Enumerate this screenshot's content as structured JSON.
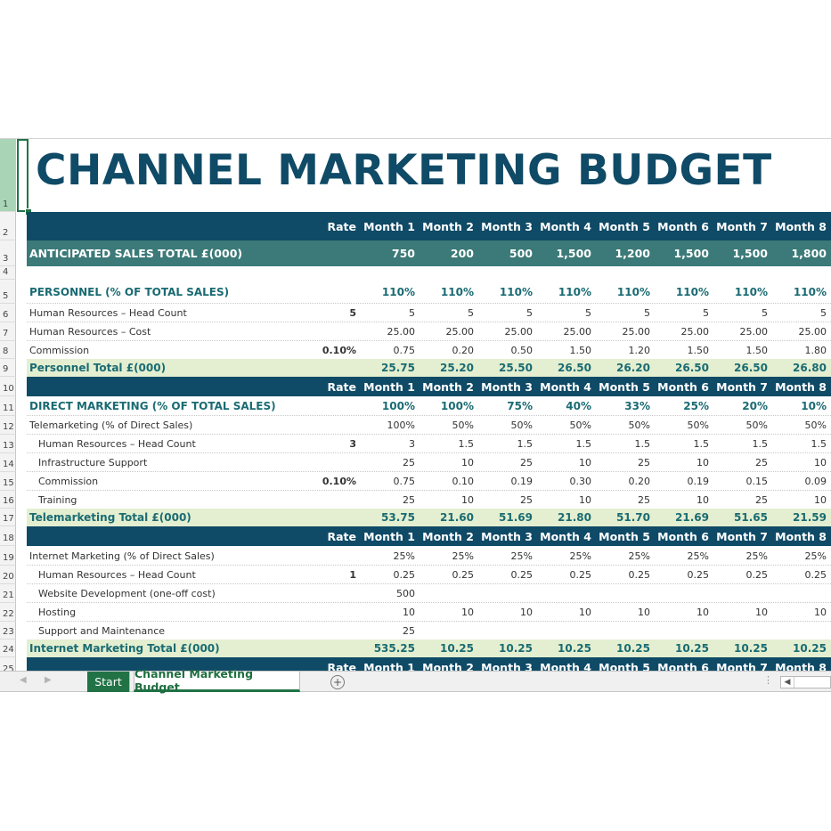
{
  "title": "CHANNEL MARKETING BUDGET",
  "header": {
    "rate": "Rate",
    "months": [
      "Month 1",
      "Month 2",
      "Month 3",
      "Month 4",
      "Month 5",
      "Month 6",
      "Month 7",
      "Month 8"
    ]
  },
  "rows": {
    "r1": "1",
    "r2": "2",
    "r3": "3",
    "r4": "4",
    "r5": "5",
    "r6": "6",
    "r7": "7",
    "r8": "8",
    "r9": "9",
    "r10": "10",
    "r11": "11",
    "r12": "12",
    "r13": "13",
    "r14": "14",
    "r15": "15",
    "r16": "16",
    "r17": "17",
    "r18": "18",
    "r19": "19",
    "r20": "20",
    "r21": "21",
    "r22": "22",
    "r23": "23",
    "r24": "24",
    "r25": "25"
  },
  "anticipated": {
    "label": "ANTICIPATED SALES TOTAL £(000)",
    "values": [
      "750",
      "200",
      "500",
      "1,500",
      "1,200",
      "1,500",
      "1,500",
      "1,800"
    ]
  },
  "personnel": {
    "label": "PERSONNEL (% OF TOTAL SALES)",
    "pct": [
      "110%",
      "110%",
      "110%",
      "110%",
      "110%",
      "110%",
      "110%",
      "110%"
    ],
    "hr_count": {
      "label": "Human Resources – Head Count",
      "rate": "5",
      "values": [
        "5",
        "5",
        "5",
        "5",
        "5",
        "5",
        "5",
        "5"
      ]
    },
    "hr_cost": {
      "label": "Human Resources – Cost",
      "values": [
        "25.00",
        "25.00",
        "25.00",
        "25.00",
        "25.00",
        "25.00",
        "25.00",
        "25.00"
      ]
    },
    "commission": {
      "label": "Commission",
      "rate": "0.10%",
      "values": [
        "0.75",
        "0.20",
        "0.50",
        "1.50",
        "1.20",
        "1.50",
        "1.50",
        "1.80"
      ]
    },
    "total": {
      "label": "Personnel Total £(000)",
      "values": [
        "25.75",
        "25.20",
        "25.50",
        "26.50",
        "26.20",
        "26.50",
        "26.50",
        "26.80"
      ]
    }
  },
  "direct": {
    "label": "DIRECT MARKETING (% OF TOTAL SALES)",
    "pct": [
      "100%",
      "100%",
      "75%",
      "40%",
      "33%",
      "25%",
      "20%",
      "10%"
    ],
    "tele": {
      "label": "Telemarketing (% of Direct Sales)",
      "values": [
        "100%",
        "50%",
        "50%",
        "50%",
        "50%",
        "50%",
        "50%",
        "50%"
      ]
    },
    "hr_count": {
      "label": "Human Resources – Head Count",
      "rate": "3",
      "values": [
        "3",
        "1.5",
        "1.5",
        "1.5",
        "1.5",
        "1.5",
        "1.5",
        "1.5"
      ]
    },
    "infra": {
      "label": "Infrastructure Support",
      "values": [
        "25",
        "10",
        "25",
        "10",
        "25",
        "10",
        "25",
        "10"
      ]
    },
    "commission": {
      "label": "Commission",
      "rate": "0.10%",
      "values": [
        "0.75",
        "0.10",
        "0.19",
        "0.30",
        "0.20",
        "0.19",
        "0.15",
        "0.09"
      ]
    },
    "training": {
      "label": "Training",
      "values": [
        "25",
        "10",
        "25",
        "10",
        "25",
        "10",
        "25",
        "10"
      ]
    },
    "total": {
      "label": "Telemarketing Total £(000)",
      "values": [
        "53.75",
        "21.60",
        "51.69",
        "21.80",
        "51.70",
        "21.69",
        "51.65",
        "21.59"
      ]
    }
  },
  "internet": {
    "im": {
      "label": "Internet Marketing (% of Direct Sales)",
      "values": [
        "25%",
        "25%",
        "25%",
        "25%",
        "25%",
        "25%",
        "25%",
        "25%"
      ]
    },
    "hr_count": {
      "label": "Human Resources – Head Count",
      "rate": "1",
      "values": [
        "0.25",
        "0.25",
        "0.25",
        "0.25",
        "0.25",
        "0.25",
        "0.25",
        "0.25"
      ]
    },
    "web": {
      "label": "Website Development (one-off cost)",
      "values": [
        "500",
        "",
        "",
        "",
        "",
        "",
        "",
        ""
      ]
    },
    "hosting": {
      "label": "Hosting",
      "values": [
        "10",
        "10",
        "10",
        "10",
        "10",
        "10",
        "10",
        "10"
      ]
    },
    "support": {
      "label": "Support and Maintenance",
      "values": [
        "25",
        "",
        "",
        "",
        "",
        "",
        "",
        ""
      ]
    },
    "total": {
      "label": "Internet Marketing Total £(000)",
      "values": [
        "535.25",
        "10.25",
        "10.25",
        "10.25",
        "10.25",
        "10.25",
        "10.25",
        "10.25"
      ]
    }
  },
  "tabs": {
    "start": "Start",
    "current": "Channel Marketing Budget"
  },
  "icons": {
    "add": "plus-circle-icon",
    "nav_prev": "triangle-left-icon",
    "nav_next": "triangle-right-icon"
  },
  "colors": {
    "dark_band": "#0f4a66",
    "teal_band": "#3b7a78",
    "total_band": "#e3efd0",
    "accent": "#217346"
  }
}
